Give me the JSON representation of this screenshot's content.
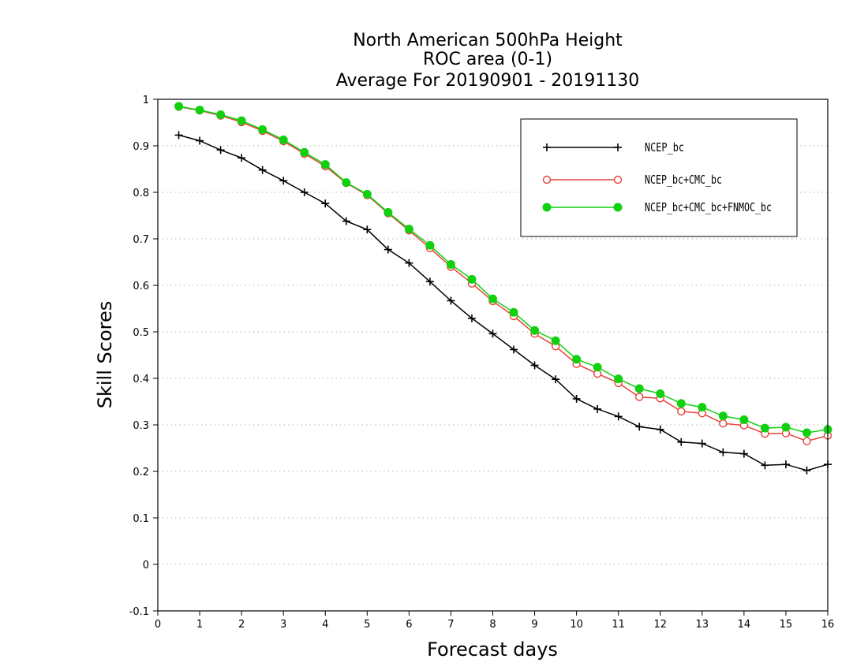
{
  "chart_data": {
    "type": "line",
    "title": [
      "North American 500hPa Height",
      "ROC area (0-1)",
      "Average For 20190901 - 20191130"
    ],
    "xlabel": "Forecast days",
    "ylabel": "Skill Scores",
    "xlim": [
      0,
      16
    ],
    "ylim": [
      -0.1,
      1
    ],
    "x_ticks": [
      0,
      1,
      2,
      3,
      4,
      5,
      6,
      7,
      8,
      9,
      10,
      11,
      12,
      13,
      14,
      15,
      16
    ],
    "x_tick_labels": [
      "0",
      "1",
      "2",
      "3",
      "4",
      "5",
      "6",
      "7",
      "8",
      "9",
      "10",
      "11",
      "12",
      "13",
      "14",
      "15",
      "16"
    ],
    "y_ticks": [
      -0.1,
      0,
      0.1,
      0.2,
      0.3,
      0.4,
      0.5,
      0.6,
      0.7,
      0.8,
      0.9,
      1
    ],
    "y_tick_labels": [
      "-0.1",
      "0",
      "0.1",
      "0.2",
      "0.3",
      "0.4",
      "0.5",
      "0.6",
      "0.7",
      "0.8",
      "0.9",
      "1"
    ],
    "grid": true,
    "legend_position": "top-right",
    "x": [
      0.5,
      1,
      1.5,
      2,
      2.5,
      3,
      3.5,
      4,
      4.5,
      5,
      5.5,
      6,
      6.5,
      7,
      7.5,
      8,
      8.5,
      9,
      9.5,
      10,
      10.5,
      11,
      11.5,
      12,
      12.5,
      13,
      13.5,
      14,
      14.5,
      15,
      15.5,
      16
    ],
    "series": [
      {
        "name": "NCEP_bc",
        "color": "#000000",
        "marker": "plus",
        "values": [
          0.923,
          0.911,
          0.891,
          0.874,
          0.848,
          0.825,
          0.8,
          0.776,
          0.738,
          0.72,
          0.677,
          0.648,
          0.608,
          0.567,
          0.529,
          0.496,
          0.462,
          0.428,
          0.398,
          0.356,
          0.334,
          0.318,
          0.296,
          0.29,
          0.263,
          0.26,
          0.241,
          0.238,
          0.213,
          0.215,
          0.202,
          0.215
        ]
      },
      {
        "name": "NCEP_bc+CMC_bc",
        "color": "#e8413a",
        "marker": "open-circle",
        "values": [
          0.984,
          0.976,
          0.965,
          0.951,
          0.932,
          0.91,
          0.883,
          0.856,
          0.82,
          0.794,
          0.755,
          0.718,
          0.68,
          0.64,
          0.604,
          0.566,
          0.534,
          0.496,
          0.469,
          0.431,
          0.41,
          0.39,
          0.36,
          0.357,
          0.329,
          0.325,
          0.303,
          0.299,
          0.281,
          0.282,
          0.265,
          0.277
        ]
      },
      {
        "name": "NCEP_bc+CMC_bc+FNMOC_bc",
        "color": "#10d010",
        "marker": "filled-circle",
        "values": [
          0.985,
          0.977,
          0.967,
          0.954,
          0.935,
          0.913,
          0.886,
          0.86,
          0.821,
          0.796,
          0.757,
          0.721,
          0.686,
          0.645,
          0.613,
          0.571,
          0.542,
          0.503,
          0.481,
          0.441,
          0.424,
          0.399,
          0.378,
          0.367,
          0.346,
          0.338,
          0.319,
          0.311,
          0.293,
          0.295,
          0.283,
          0.29
        ]
      }
    ]
  }
}
